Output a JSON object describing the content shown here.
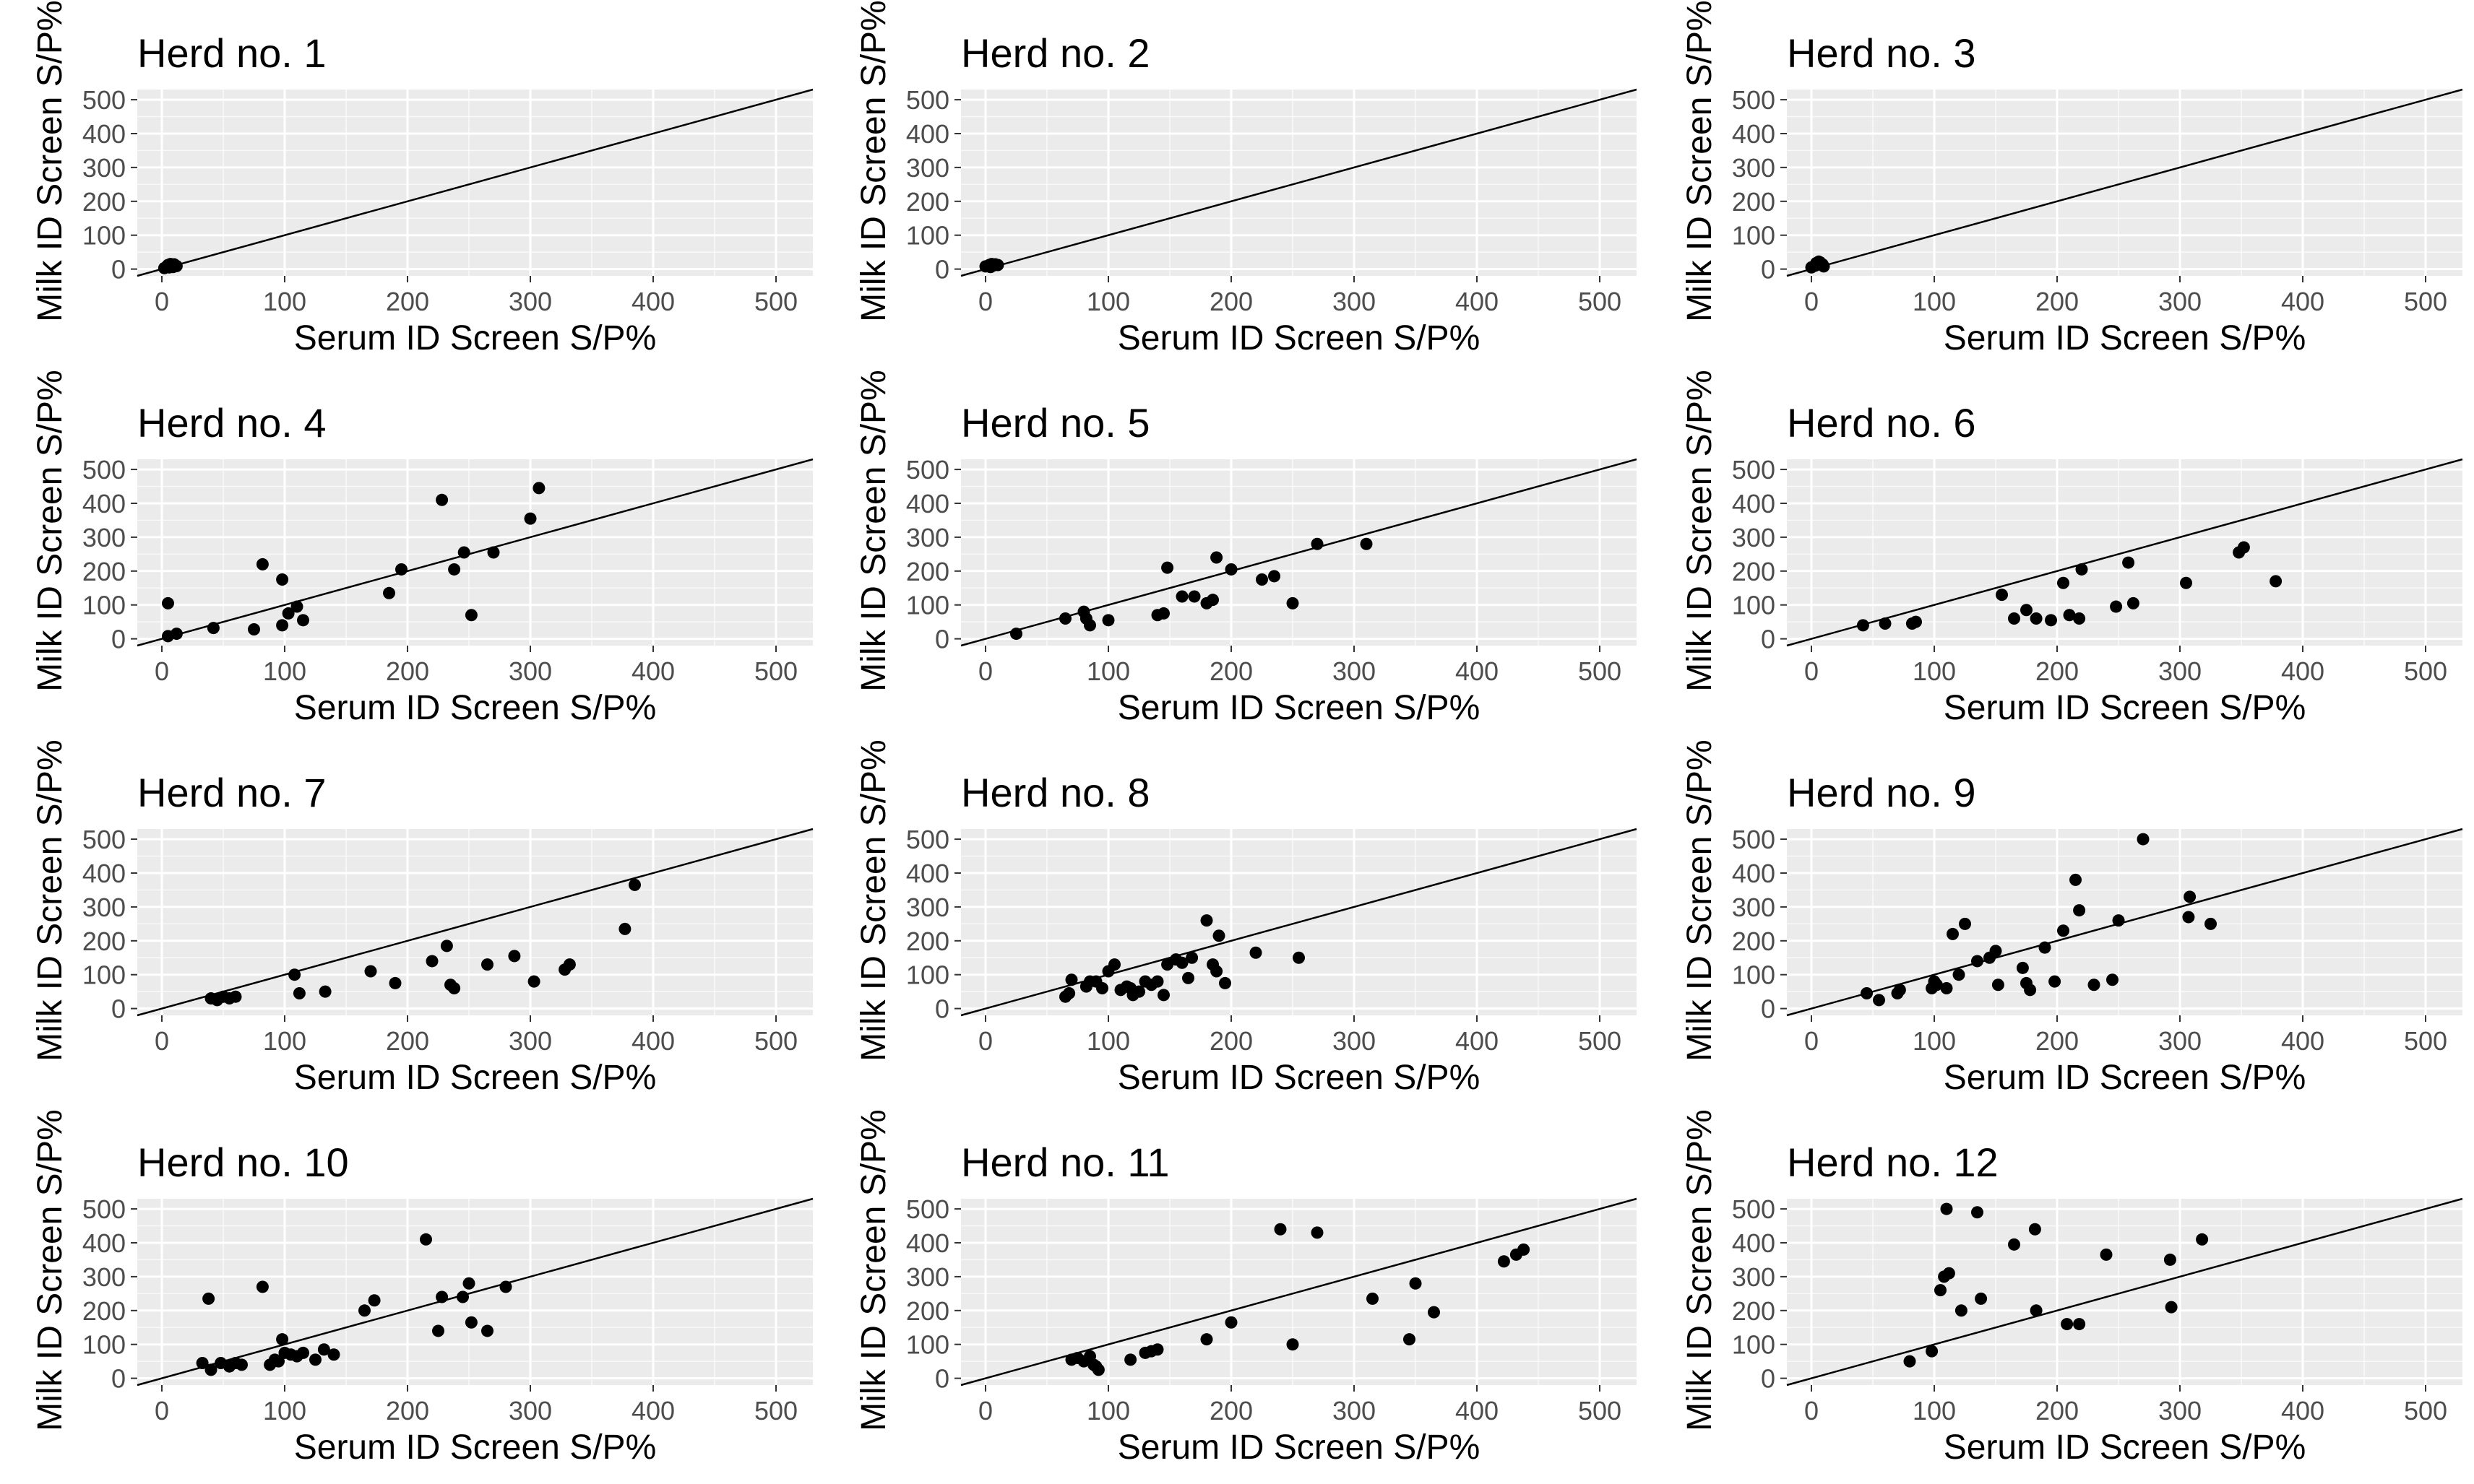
{
  "figure": {
    "xlabel": "Serum ID Screen S/P%",
    "ylabel": "Milk ID Screen S/P%",
    "xlim": [
      -20,
      530
    ],
    "ylim": [
      -20,
      530
    ],
    "ticks": [
      0,
      100,
      200,
      300,
      400,
      500
    ],
    "reference_line": "y = x",
    "colors": {
      "panel_bg": "#ebebeb",
      "grid": "#ffffff",
      "point": "#000000",
      "tick_text": "#4d4d4d"
    }
  },
  "chart_data": [
    {
      "type": "scatter",
      "title": "Herd no. 1",
      "xlabel": "Serum ID Screen S/P%",
      "ylabel": "Milk ID Screen S/P%",
      "points": [
        [
          2,
          3
        ],
        [
          4,
          8
        ],
        [
          5,
          12
        ],
        [
          6,
          5
        ],
        [
          8,
          10
        ],
        [
          10,
          14
        ],
        [
          12,
          9
        ],
        [
          9,
          6
        ],
        [
          7,
          15
        ]
      ]
    },
    {
      "type": "scatter",
      "title": "Herd no. 2",
      "xlabel": "Serum ID Screen S/P%",
      "ylabel": "Milk ID Screen S/P%",
      "points": [
        [
          0,
          8
        ],
        [
          3,
          12
        ],
        [
          5,
          15
        ],
        [
          6,
          10
        ],
        [
          8,
          14
        ],
        [
          10,
          12
        ],
        [
          4,
          6
        ]
      ]
    },
    {
      "type": "scatter",
      "title": "Herd no. 3",
      "xlabel": "Serum ID Screen S/P%",
      "ylabel": "Milk ID Screen S/P%",
      "points": [
        [
          0,
          5
        ],
        [
          3,
          10
        ],
        [
          5,
          15
        ],
        [
          7,
          20
        ],
        [
          9,
          14
        ],
        [
          10,
          8
        ],
        [
          6,
          22
        ],
        [
          4,
          18
        ]
      ]
    },
    {
      "type": "scatter",
      "title": "Herd no. 4",
      "xlabel": "Serum ID Screen S/P%",
      "ylabel": "Milk ID Screen S/P%",
      "points": [
        [
          5,
          105
        ],
        [
          5,
          8
        ],
        [
          12,
          15
        ],
        [
          42,
          32
        ],
        [
          75,
          28
        ],
        [
          82,
          220
        ],
        [
          98,
          175
        ],
        [
          98,
          40
        ],
        [
          103,
          75
        ],
        [
          110,
          95
        ],
        [
          115,
          55
        ],
        [
          185,
          135
        ],
        [
          195,
          205
        ],
        [
          228,
          410
        ],
        [
          238,
          205
        ],
        [
          246,
          255
        ],
        [
          252,
          70
        ],
        [
          270,
          255
        ],
        [
          300,
          355
        ],
        [
          307,
          445
        ]
      ]
    },
    {
      "type": "scatter",
      "title": "Herd no. 5",
      "xlabel": "Serum ID Screen S/P%",
      "ylabel": "Milk ID Screen S/P%",
      "points": [
        [
          25,
          15
        ],
        [
          65,
          60
        ],
        [
          80,
          80
        ],
        [
          82,
          60
        ],
        [
          85,
          40
        ],
        [
          100,
          55
        ],
        [
          140,
          70
        ],
        [
          145,
          75
        ],
        [
          148,
          210
        ],
        [
          160,
          125
        ],
        [
          170,
          125
        ],
        [
          180,
          105
        ],
        [
          185,
          115
        ],
        [
          188,
          240
        ],
        [
          200,
          205
        ],
        [
          225,
          175
        ],
        [
          235,
          185
        ],
        [
          250,
          105
        ],
        [
          270,
          280
        ],
        [
          310,
          280
        ]
      ]
    },
    {
      "type": "scatter",
      "title": "Herd no. 6",
      "xlabel": "Serum ID Screen S/P%",
      "ylabel": "Milk ID Screen S/P%",
      "points": [
        [
          42,
          40
        ],
        [
          60,
          45
        ],
        [
          82,
          45
        ],
        [
          85,
          50
        ],
        [
          155,
          130
        ],
        [
          165,
          60
        ],
        [
          175,
          85
        ],
        [
          183,
          60
        ],
        [
          195,
          55
        ],
        [
          205,
          165
        ],
        [
          210,
          70
        ],
        [
          218,
          60
        ],
        [
          220,
          205
        ],
        [
          248,
          95
        ],
        [
          258,
          225
        ],
        [
          262,
          105
        ],
        [
          305,
          165
        ],
        [
          348,
          255
        ],
        [
          352,
          270
        ],
        [
          378,
          170
        ]
      ]
    },
    {
      "type": "scatter",
      "title": "Herd no. 7",
      "xlabel": "Serum ID Screen S/P%",
      "ylabel": "Milk ID Screen S/P%",
      "points": [
        [
          40,
          30
        ],
        [
          45,
          25
        ],
        [
          50,
          35
        ],
        [
          55,
          30
        ],
        [
          60,
          35
        ],
        [
          108,
          100
        ],
        [
          112,
          45
        ],
        [
          133,
          50
        ],
        [
          170,
          110
        ],
        [
          190,
          75
        ],
        [
          220,
          140
        ],
        [
          232,
          185
        ],
        [
          235,
          70
        ],
        [
          238,
          60
        ],
        [
          265,
          130
        ],
        [
          287,
          155
        ],
        [
          303,
          80
        ],
        [
          328,
          115
        ],
        [
          332,
          130
        ],
        [
          377,
          235
        ],
        [
          385,
          365
        ]
      ]
    },
    {
      "type": "scatter",
      "title": "Herd no. 8",
      "xlabel": "Serum ID Screen S/P%",
      "ylabel": "Milk ID Screen S/P%",
      "points": [
        [
          65,
          35
        ],
        [
          68,
          45
        ],
        [
          70,
          85
        ],
        [
          82,
          65
        ],
        [
          85,
          80
        ],
        [
          90,
          80
        ],
        [
          95,
          60
        ],
        [
          100,
          110
        ],
        [
          105,
          130
        ],
        [
          110,
          55
        ],
        [
          115,
          65
        ],
        [
          118,
          60
        ],
        [
          120,
          40
        ],
        [
          125,
          50
        ],
        [
          130,
          80
        ],
        [
          135,
          70
        ],
        [
          140,
          80
        ],
        [
          145,
          40
        ],
        [
          148,
          130
        ],
        [
          155,
          145
        ],
        [
          160,
          135
        ],
        [
          165,
          90
        ],
        [
          168,
          150
        ],
        [
          180,
          260
        ],
        [
          185,
          130
        ],
        [
          188,
          110
        ],
        [
          190,
          215
        ],
        [
          195,
          75
        ],
        [
          220,
          165
        ],
        [
          255,
          150
        ]
      ]
    },
    {
      "type": "scatter",
      "title": "Herd no. 9",
      "xlabel": "Serum ID Screen S/P%",
      "ylabel": "Milk ID Screen S/P%",
      "points": [
        [
          45,
          45
        ],
        [
          55,
          25
        ],
        [
          70,
          45
        ],
        [
          72,
          55
        ],
        [
          98,
          60
        ],
        [
          100,
          80
        ],
        [
          102,
          70
        ],
        [
          110,
          60
        ],
        [
          115,
          220
        ],
        [
          120,
          100
        ],
        [
          125,
          250
        ],
        [
          135,
          140
        ],
        [
          145,
          150
        ],
        [
          150,
          170
        ],
        [
          152,
          70
        ],
        [
          172,
          120
        ],
        [
          175,
          75
        ],
        [
          178,
          55
        ],
        [
          190,
          180
        ],
        [
          198,
          80
        ],
        [
          205,
          230
        ],
        [
          215,
          380
        ],
        [
          218,
          290
        ],
        [
          230,
          70
        ],
        [
          245,
          85
        ],
        [
          250,
          260
        ],
        [
          270,
          500
        ],
        [
          307,
          270
        ],
        [
          308,
          330
        ],
        [
          325,
          250
        ]
      ]
    },
    {
      "type": "scatter",
      "title": "Herd no. 10",
      "xlabel": "Serum ID Screen S/P%",
      "ylabel": "Milk ID Screen S/P%",
      "points": [
        [
          33,
          45
        ],
        [
          38,
          235
        ],
        [
          40,
          25
        ],
        [
          48,
          45
        ],
        [
          55,
          35
        ],
        [
          60,
          45
        ],
        [
          65,
          40
        ],
        [
          82,
          270
        ],
        [
          88,
          40
        ],
        [
          92,
          55
        ],
        [
          95,
          50
        ],
        [
          98,
          115
        ],
        [
          100,
          75
        ],
        [
          105,
          70
        ],
        [
          110,
          65
        ],
        [
          115,
          75
        ],
        [
          125,
          55
        ],
        [
          132,
          85
        ],
        [
          140,
          70
        ],
        [
          165,
          200
        ],
        [
          173,
          230
        ],
        [
          215,
          410
        ],
        [
          225,
          140
        ],
        [
          228,
          240
        ],
        [
          245,
          240
        ],
        [
          250,
          280
        ],
        [
          252,
          165
        ],
        [
          265,
          140
        ],
        [
          280,
          270
        ]
      ]
    },
    {
      "type": "scatter",
      "title": "Herd no. 11",
      "xlabel": "Serum ID Screen S/P%",
      "ylabel": "Milk ID Screen S/P%",
      "points": [
        [
          70,
          55
        ],
        [
          75,
          60
        ],
        [
          80,
          50
        ],
        [
          85,
          65
        ],
        [
          88,
          40
        ],
        [
          90,
          35
        ],
        [
          92,
          25
        ],
        [
          118,
          55
        ],
        [
          130,
          75
        ],
        [
          135,
          80
        ],
        [
          140,
          85
        ],
        [
          180,
          115
        ],
        [
          200,
          165
        ],
        [
          240,
          440
        ],
        [
          250,
          100
        ],
        [
          270,
          430
        ],
        [
          315,
          235
        ],
        [
          345,
          115
        ],
        [
          350,
          280
        ],
        [
          365,
          195
        ],
        [
          422,
          345
        ],
        [
          432,
          365
        ],
        [
          438,
          380
        ]
      ]
    },
    {
      "type": "scatter",
      "title": "Herd no. 12",
      "xlabel": "Serum ID Screen S/P%",
      "ylabel": "Milk ID Screen S/P%",
      "points": [
        [
          80,
          50
        ],
        [
          98,
          80
        ],
        [
          105,
          260
        ],
        [
          108,
          300
        ],
        [
          110,
          500
        ],
        [
          112,
          310
        ],
        [
          122,
          200
        ],
        [
          135,
          490
        ],
        [
          138,
          235
        ],
        [
          165,
          395
        ],
        [
          182,
          440
        ],
        [
          183,
          200
        ],
        [
          208,
          160
        ],
        [
          218,
          160
        ],
        [
          240,
          365
        ],
        [
          292,
          350
        ],
        [
          293,
          210
        ],
        [
          318,
          410
        ]
      ]
    }
  ]
}
